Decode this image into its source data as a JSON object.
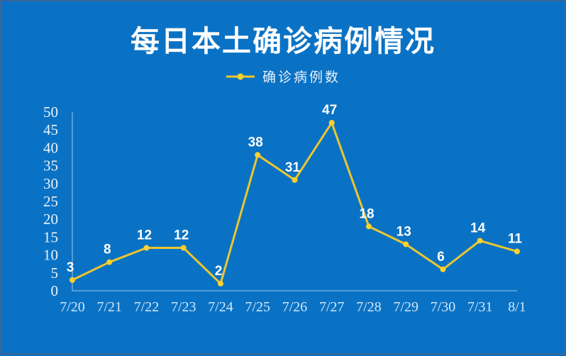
{
  "page": {
    "background_color": "#0a72c4",
    "border_color": "#3a679a"
  },
  "header": {
    "title": "每日本土确诊病例情况"
  },
  "legend": {
    "label": "确诊病例数",
    "line_color": "#ecc62f",
    "marker_color": "#ffd02e"
  },
  "chart_data": {
    "type": "line",
    "title": "每日本土确诊病例情况",
    "series": [
      {
        "name": "确诊病例数",
        "values": [
          3,
          8,
          12,
          12,
          2,
          38,
          31,
          47,
          18,
          13,
          6,
          14,
          11
        ]
      }
    ],
    "categories": [
      "7/20",
      "7/21",
      "7/22",
      "7/23",
      "7/24",
      "7/25",
      "7/26",
      "7/27",
      "7/28",
      "7/29",
      "7/30",
      "7/31",
      "8/1"
    ],
    "xlabel": "",
    "ylabel": "",
    "ylim": [
      0,
      50
    ],
    "ytick_step": 5,
    "yticks": [
      0,
      5,
      10,
      15,
      20,
      25,
      30,
      35,
      40,
      45,
      50
    ],
    "grid": false,
    "legend_position": "top-center",
    "data_labels": true,
    "colors": {
      "line": "#ecc62f",
      "marker": "#ffd02e",
      "value_label": "#ffffff",
      "axis": "#a3c6e0",
      "ytick_text": "#eaf3fb",
      "xtick_text": "#d2e6f7"
    }
  }
}
